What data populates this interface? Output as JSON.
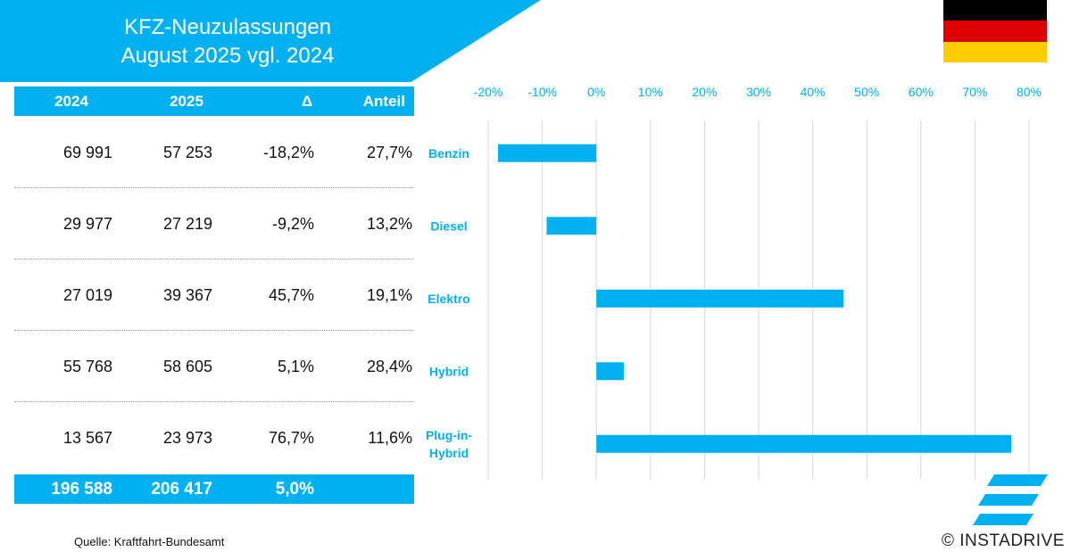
{
  "header": {
    "title_line1": "KFZ-Neuzulassungen",
    "title_line2": "August 2025 vgl. 2024"
  },
  "flag_colors": [
    "#000000",
    "#dd0000",
    "#ffce00"
  ],
  "table": {
    "columns": [
      "2024",
      "2025",
      "Δ",
      "Anteil"
    ],
    "rows": [
      {
        "y2024": "69 991",
        "y2025": "57 253",
        "delta": "-18,2%",
        "share": "27,7%"
      },
      {
        "y2024": "29 977",
        "y2025": "27 219",
        "delta": "-9,2%",
        "share": "13,2%"
      },
      {
        "y2024": "27 019",
        "y2025": "39 367",
        "delta": "45,7%",
        "share": "19,1%"
      },
      {
        "y2024": "55 768",
        "y2025": "58 605",
        "delta": "5,1%",
        "share": "28,4%"
      },
      {
        "y2024": "13 567",
        "y2025": "23 973",
        "delta": "76,7%",
        "share": "11,6%"
      }
    ],
    "total": {
      "y2024": "196 588",
      "y2025": "206 417",
      "delta": "5,0%"
    }
  },
  "chart_data": {
    "type": "bar",
    "orientation": "horizontal",
    "categories": [
      "Benzin",
      "Diesel",
      "Elektro",
      "Hybrid",
      "Plug-in-Hybrid"
    ],
    "category_lines": [
      [
        "Benzin"
      ],
      [
        "Diesel"
      ],
      [
        "Elektro"
      ],
      [
        "Hybrid"
      ],
      [
        "Plug-in-",
        "Hybrid"
      ]
    ],
    "values": [
      -18.2,
      -9.2,
      45.7,
      5.1,
      76.7
    ],
    "xlim": [
      -20,
      80
    ],
    "ticks": [
      -20,
      -10,
      0,
      10,
      20,
      30,
      40,
      50,
      60,
      70,
      80
    ],
    "tick_labels": [
      "-20%",
      "-10%",
      "0%",
      "10%",
      "20%",
      "30%",
      "40%",
      "50%",
      "60%",
      "70%",
      "80%"
    ],
    "axis_position": "top",
    "grid": true,
    "bar_color": "#00b0ef",
    "grid_color": "#d9d9d9"
  },
  "footer": {
    "source": "Quelle: Kraftfahrt-Bundesamt",
    "brand": "© INSTADRIVE"
  },
  "logo_color": "#00b0ef"
}
